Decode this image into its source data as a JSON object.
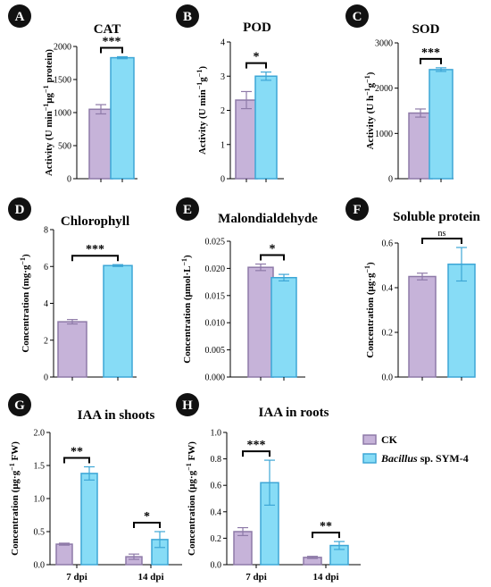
{
  "colors": {
    "ck": "#c6b3d9",
    "bacillus": "#87dcf6",
    "ck_stroke": "#8e7aa8",
    "bacillus_stroke": "#3da6d6",
    "badge": "#111111"
  },
  "legend": {
    "items": [
      {
        "label": "CK"
      },
      {
        "label_italic": "Bacillus",
        "label_rest": " sp. SYM-4"
      }
    ]
  },
  "chart_data": [
    {
      "id": "A",
      "type": "bar",
      "title": "CAT",
      "ylabel_parts": [
        "Activity (U min",
        "−1",
        "μg",
        "−1",
        " protein)"
      ],
      "categories": [
        "CK",
        "Bacillus sp. SYM-4"
      ],
      "values": [
        1050,
        1830
      ],
      "errors": [
        70,
        15
      ],
      "ylim": [
        0,
        2000
      ],
      "yticks": [
        "0",
        "500",
        "1000",
        "1500",
        "2000"
      ],
      "significance": [
        "***"
      ]
    },
    {
      "id": "B",
      "type": "bar",
      "title": "POD",
      "ylabel_parts": [
        "Activity (U min",
        "−1",
        "g",
        "−1",
        ")"
      ],
      "categories": [
        "CK",
        "Bacillus sp. SYM-4"
      ],
      "values": [
        2.3,
        3.0
      ],
      "errors": [
        0.25,
        0.12
      ],
      "ylim": [
        0,
        4
      ],
      "yticks": [
        "0",
        "1",
        "2",
        "3",
        "4"
      ],
      "significance": [
        "*"
      ]
    },
    {
      "id": "C",
      "type": "bar",
      "title": "SOD",
      "ylabel_parts": [
        "Activity (U h",
        "−1",
        "g",
        "−1",
        ")"
      ],
      "categories": [
        "CK",
        "Bacillus sp. SYM-4"
      ],
      "values": [
        1450,
        2410
      ],
      "errors": [
        90,
        40
      ],
      "ylim": [
        0,
        3000
      ],
      "yticks": [
        "0",
        "1000",
        "2000",
        "3000"
      ],
      "significance": [
        "***"
      ]
    },
    {
      "id": "D",
      "type": "bar",
      "title": "Chlorophyll",
      "ylabel_parts": [
        "Concentration (mg·g",
        "−1",
        ")"
      ],
      "categories": [
        "CK",
        "Bacillus sp. SYM-4"
      ],
      "values": [
        3.0,
        6.05
      ],
      "errors": [
        0.12,
        0.05
      ],
      "ylim": [
        0,
        8
      ],
      "yticks": [
        "0",
        "2",
        "4",
        "6",
        "8"
      ],
      "significance": [
        "***"
      ]
    },
    {
      "id": "E",
      "type": "bar",
      "title": "Malondialdehyde",
      "ylabel_parts": [
        "Concentration (μmol·L",
        "−1",
        ")"
      ],
      "categories": [
        "CK",
        "Bacillus sp. SYM-4"
      ],
      "values": [
        0.0202,
        0.0183
      ],
      "errors": [
        0.0006,
        0.0006
      ],
      "ylim": [
        0,
        0.025
      ],
      "yticks": [
        "0.000",
        "0.005",
        "0.010",
        "0.015",
        "0.020",
        "0.025"
      ],
      "significance": [
        "*"
      ]
    },
    {
      "id": "F",
      "type": "bar",
      "title": "Soluble protein",
      "ylabel_parts": [
        "Concentration (μg·g",
        "−1",
        ")"
      ],
      "categories": [
        "CK",
        "Bacillus sp. SYM-4"
      ],
      "values": [
        0.45,
        0.505
      ],
      "errors": [
        0.015,
        0.075
      ],
      "ylim": [
        0,
        0.6
      ],
      "yticks": [
        "0.0",
        "0.2",
        "0.4",
        "0.6"
      ],
      "significance": [
        "ns"
      ]
    },
    {
      "id": "G",
      "type": "bar",
      "title": "IAA in shoots",
      "ylabel_parts": [
        "Concentration (μg·g",
        "−1",
        " FW)"
      ],
      "categories": [
        "7 dpi",
        "14 dpi"
      ],
      "series": [
        {
          "name": "CK",
          "values": [
            0.31,
            0.12
          ],
          "errors": [
            0.015,
            0.04
          ]
        },
        {
          "name": "Bacillus sp. SYM-4",
          "values": [
            1.38,
            0.38
          ],
          "errors": [
            0.1,
            0.12
          ]
        }
      ],
      "ylim": [
        0,
        2.0
      ],
      "yticks": [
        "0.0",
        "0.5",
        "1.0",
        "1.5",
        "2.0"
      ],
      "significance": [
        "**",
        "*"
      ]
    },
    {
      "id": "H",
      "type": "bar",
      "title": "IAA in roots",
      "ylabel_parts": [
        "Concentration (μg·g",
        "−1",
        " FW)"
      ],
      "categories": [
        "7 dpi",
        "14 dpi"
      ],
      "series": [
        {
          "name": "CK",
          "values": [
            0.25,
            0.055
          ],
          "errors": [
            0.03,
            0.008
          ]
        },
        {
          "name": "Bacillus sp. SYM-4",
          "values": [
            0.62,
            0.145
          ],
          "errors": [
            0.17,
            0.03
          ]
        }
      ],
      "ylim": [
        0,
        1.0
      ],
      "yticks": [
        "0.0",
        "0.2",
        "0.4",
        "0.6",
        "0.8",
        "1.0"
      ],
      "significance": [
        "***",
        "**"
      ]
    }
  ]
}
